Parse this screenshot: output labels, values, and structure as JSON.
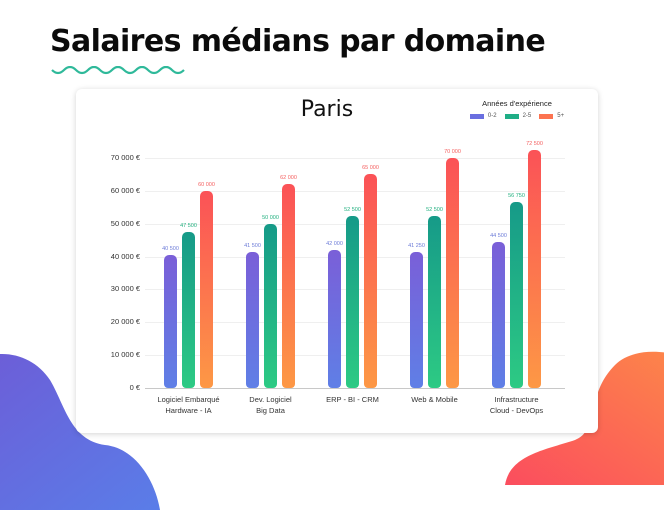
{
  "page": {
    "headline": "Salaires médians par domaine"
  },
  "chart_data": {
    "type": "bar",
    "title": "Paris",
    "legend_title": "Années d'expérience",
    "legend_position": "top-right",
    "categories": [
      [
        "Logiciel Embarqué",
        "Hardware - IA"
      ],
      [
        "Dev. Logiciel",
        "Big Data"
      ],
      [
        "ERP - BI - CRM"
      ],
      [
        "Web & Mobile"
      ],
      [
        "Infrastructure",
        "Cloud - DevOps"
      ]
    ],
    "series": [
      {
        "name": "0-2",
        "color": "#6a6fe0",
        "values": [
          40500,
          41500,
          42000,
          41250,
          44500
        ],
        "labels": [
          "40 500",
          "41 500",
          "42 000",
          "41 250",
          "44 500"
        ]
      },
      {
        "name": "2-5",
        "color": "#1fae86",
        "values": [
          47500,
          50000,
          52500,
          52500,
          56750
        ],
        "labels": [
          "47 500",
          "50 000",
          "52 500",
          "52 500",
          "56 750"
        ]
      },
      {
        "name": "5+",
        "color": "#fc7350",
        "values": [
          60000,
          62000,
          65000,
          70000,
          72500
        ],
        "labels": [
          "60 000",
          "62 000",
          "65 000",
          "70 000",
          "72 500"
        ]
      }
    ],
    "xlabel": "",
    "ylabel": "",
    "ylim": [
      0,
      70000
    ],
    "yticks": [
      "0 €",
      "10 000 €",
      "20 000 €",
      "30 000 €",
      "40 000 €",
      "50 000 €",
      "60 000 €",
      "70 000 €"
    ],
    "grid": true
  }
}
